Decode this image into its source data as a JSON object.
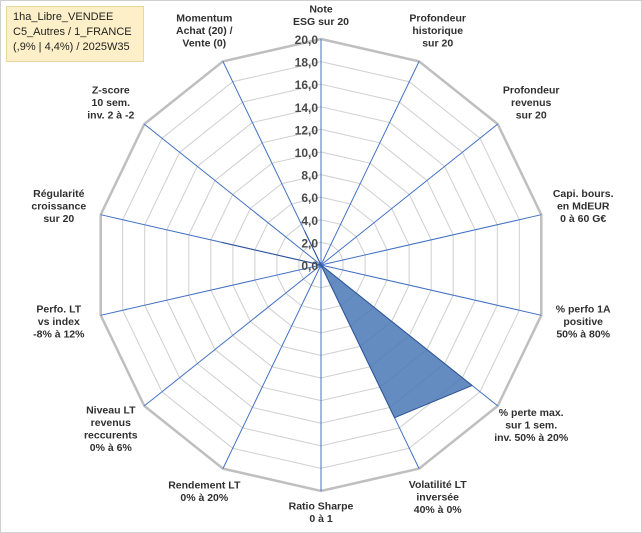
{
  "info": {
    "line1": "1ha_Libre_VENDEE",
    "line2": "C5_Autres / 1_FRANCE",
    "line3": "(,9% | 4,4%) / 2025W35"
  },
  "chart_data": {
    "type": "radar",
    "rmin": 0,
    "rmax": 20,
    "tick_step": 2,
    "tick_labels": [
      "0,0",
      "2,0",
      "4,0",
      "6,0",
      "8,0",
      "10,0",
      "12,0",
      "14,0",
      "16,0",
      "18,0",
      "20,0"
    ],
    "grid": true,
    "categories": [
      [
        "Note",
        "ESG sur 20"
      ],
      [
        "Profondeur",
        "historique",
        "sur 20"
      ],
      [
        "Profondeur",
        "revenus",
        "sur 20"
      ],
      [
        "Capi. bours.",
        "en MdEUR",
        "0 à 60 G€"
      ],
      [
        "% perfo 1A",
        "positive",
        "50% à 80%"
      ],
      [
        "% perte max.",
        "sur 1 sem.",
        "inv. 50% à 20%"
      ],
      [
        "Volatilité LT",
        "inversée",
        "40% à 0%"
      ],
      [
        "Ratio Sharpe",
        "0 à 1"
      ],
      [
        "Rendement LT",
        "0% à 20%"
      ],
      [
        "Niveau LT",
        "revenus",
        "reccurents",
        "0% à 6%"
      ],
      [
        "Perfo. LT",
        "vs index",
        "-8% à 12%"
      ],
      [
        "Régularité",
        "croissance",
        "sur 20"
      ],
      [
        "Z-score",
        "10 sem.",
        "inv. 2 à -2"
      ],
      [
        "Momentum",
        "Achat (20) /",
        "Vente (0)"
      ]
    ],
    "values": [
      0,
      0,
      0,
      0,
      0,
      17.1,
      15.0,
      0,
      0,
      0,
      0,
      9.0,
      0,
      3.3
    ],
    "colors": {
      "fill": "#4a78b6",
      "stroke": "#2f5597",
      "grid": "#cfcfcf",
      "frame": "#bfbfbf",
      "spoke": "#4472c4"
    }
  }
}
